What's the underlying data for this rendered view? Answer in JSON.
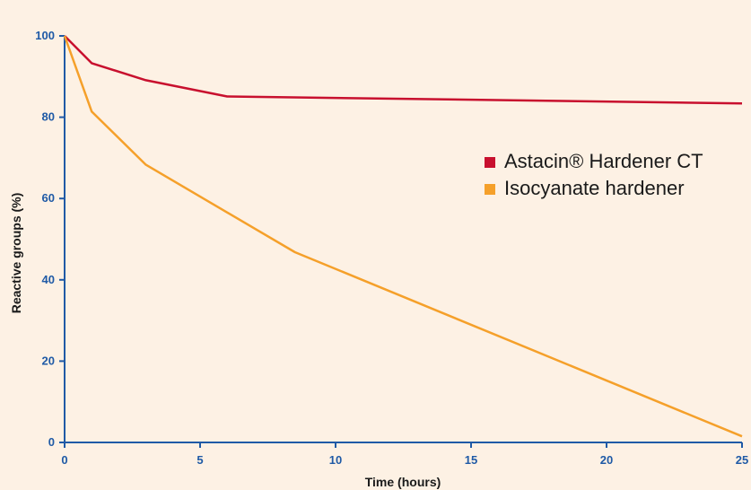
{
  "chart_data": {
    "type": "line",
    "title": "",
    "xlabel": "Time (hours)",
    "ylabel": "Reactive groups (%)",
    "xlim": [
      0,
      25
    ],
    "ylim": [
      0,
      100
    ],
    "x_ticks": [
      0,
      5,
      10,
      15,
      20,
      25
    ],
    "y_ticks": [
      0,
      20,
      40,
      60,
      80,
      100
    ],
    "x_tick_labels": [
      "0",
      "5",
      "10",
      "15",
      "20",
      "25"
    ],
    "y_tick_labels": [
      "0",
      "20",
      "40",
      "60",
      "80",
      "100"
    ],
    "grid": false,
    "legend_position": "right",
    "axis_color": "#1f5aa6",
    "background": "#fdf1e4",
    "series": [
      {
        "name": "Astacin® Hardener CT",
        "color": "#c8102e",
        "x": [
          0,
          1,
          3,
          6,
          25
        ],
        "y": [
          100,
          93.3,
          89.1,
          85.1,
          83.4
        ]
      },
      {
        "name": "Isocyanate hardener",
        "color": "#f5a02a",
        "x": [
          0,
          1,
          3,
          8.5,
          25
        ],
        "y": [
          100,
          81.4,
          68.3,
          46.8,
          1.5
        ]
      }
    ]
  }
}
